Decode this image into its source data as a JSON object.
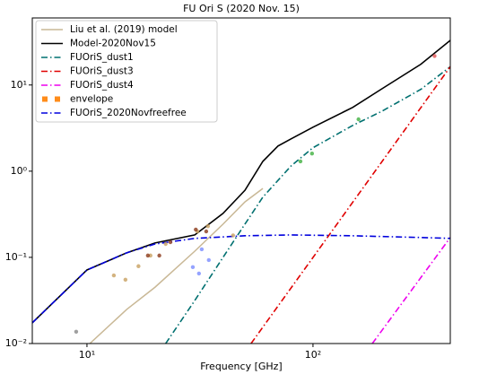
{
  "chart_data": {
    "type": "line",
    "title": "FU Ori S (2020 Nov. 15)",
    "x_label": "Frequency [GHz]",
    "log_x": true,
    "log_y": true,
    "xlim": [
      5.73,
      405
    ],
    "ylim": [
      0.01,
      60
    ],
    "xticks": [
      {
        "value": 10,
        "label": "10¹"
      },
      {
        "value": 100,
        "label": "10²"
      }
    ],
    "yticks": [
      {
        "value": 0.01,
        "label": "10⁻²"
      },
      {
        "value": 0.1,
        "label": "10⁻¹"
      },
      {
        "value": 1,
        "label": "10⁰"
      },
      {
        "value": 10,
        "label": "10¹"
      }
    ],
    "legend": "upper-left",
    "series": [
      {
        "name": "Liu et al. (2019) model",
        "color": "#c9b896",
        "linestyle": "solid",
        "x": [
          10.3,
          15,
          20,
          30,
          40,
          50,
          60
        ],
        "values": [
          0.01,
          0.0249,
          0.045,
          0.118,
          0.243,
          0.44,
          0.63
        ]
      },
      {
        "name": "Model-2020Nov15",
        "color": "#000000",
        "linestyle": "solid",
        "x": [
          5.73,
          10,
          15,
          20,
          30,
          40,
          50,
          60,
          70,
          80,
          100,
          150,
          200,
          300,
          405
        ],
        "values": [
          0.0174,
          0.0714,
          0.113,
          0.147,
          0.182,
          0.324,
          0.6,
          1.3,
          1.96,
          2.37,
          3.24,
          5.5,
          8.9,
          17.4,
          33
        ]
      },
      {
        "name": "FUOriS_dust1",
        "color": "#007070",
        "linestyle": "dashdot",
        "x": [
          22.3,
          30,
          40,
          50,
          60,
          80,
          100,
          150,
          200,
          300,
          405
        ],
        "values": [
          0.01,
          0.0316,
          0.1,
          0.243,
          0.5,
          1.15,
          1.87,
          3.4,
          4.9,
          8.9,
          16.3
        ]
      },
      {
        "name": "FUOriS_dust3",
        "color": "#e00000",
        "linestyle": "dashdot",
        "x": [
          53.2,
          405
        ],
        "values": [
          0.01,
          16.3
        ]
      },
      {
        "name": "FUOriS_dust4",
        "color": "#ee00ee",
        "linestyle": "dashdot",
        "x": [
          183,
          405
        ],
        "values": [
          0.01,
          0.17
        ]
      },
      {
        "name": "envelope",
        "color": "#ff8c1a",
        "linestyle": "none",
        "marker": "square",
        "x": [],
        "values": []
      },
      {
        "name": "FUOriS_2020Novfreefree",
        "color": "#0000dd",
        "linestyle": "dashdot",
        "x": [
          5.73,
          10,
          15,
          20,
          30,
          50,
          80,
          150,
          300,
          405
        ],
        "values": [
          0.0174,
          0.0714,
          0.113,
          0.143,
          0.166,
          0.178,
          0.182,
          0.178,
          0.17,
          0.166
        ]
      }
    ],
    "points": [
      {
        "color": "#c8a060",
        "x": [
          13.15,
          14.8,
          16.9,
          19.1,
          22.3,
          30.8,
          34.3,
          44.3
        ],
        "values": [
          0.0617,
          0.055,
          0.079,
          0.105,
          0.143,
          0.2,
          0.23,
          0.18
        ]
      },
      {
        "color": "#8b3a1a",
        "x": [
          18.6,
          20.9,
          23.4,
          30.3,
          33.7
        ],
        "values": [
          0.105,
          0.105,
          0.15,
          0.21,
          0.2
        ]
      },
      {
        "color": "#7a8cff",
        "x": [
          29.4,
          32.2,
          34.6,
          31.3
        ],
        "values": [
          0.077,
          0.124,
          0.093,
          0.065
        ]
      },
      {
        "color": "#40b040",
        "x": [
          88,
          99,
          159
        ],
        "values": [
          1.3,
          1.6,
          4.0
        ]
      },
      {
        "color": "#e05050",
        "x": [
          345
        ],
        "values": [
          21.7
        ]
      },
      {
        "color": "#888888",
        "x": [
          8.96
        ],
        "values": [
          0.0137
        ]
      }
    ]
  }
}
